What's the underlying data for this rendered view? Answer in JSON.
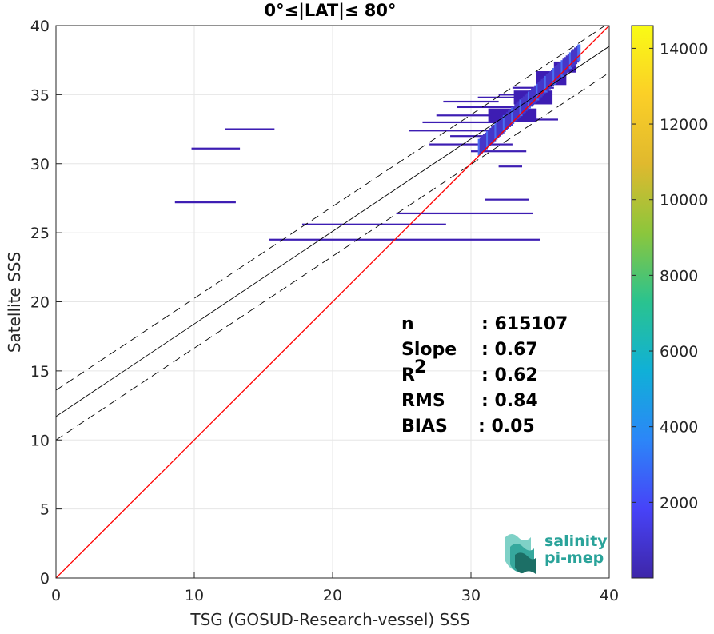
{
  "chart_data": {
    "type": "scatter",
    "title": "0°≤|LAT|≤ 80°",
    "xlabel": "TSG (GOSUD-Research-vessel) SSS",
    "ylabel": "Satellite SSS",
    "xlim": [
      0,
      40
    ],
    "ylim": [
      0,
      40
    ],
    "xticks": [
      "0",
      "10",
      "20",
      "30",
      "40"
    ],
    "yticks": [
      "0",
      "5",
      "10",
      "15",
      "20",
      "25",
      "30",
      "35",
      "40"
    ],
    "grid": true,
    "stats": [
      {
        "label": "n",
        "value": ": 615107"
      },
      {
        "label": "Slope",
        "value": ": 0.67"
      },
      {
        "label": "R",
        "sup": "2",
        "value": ": 0.62"
      },
      {
        "label": "RMS",
        "value": ": 0.84"
      },
      {
        "label": "BIAS",
        "value": ": 0.05"
      }
    ],
    "identity_line": {
      "color": "#ff0000",
      "x": [
        0,
        40
      ],
      "y": [
        0,
        40
      ]
    },
    "fit_line": {
      "color": "#000000",
      "x": [
        0,
        40
      ],
      "y": [
        11.7,
        38.5
      ]
    },
    "fit_band_upper": {
      "color": "#000000",
      "dash": true,
      "x": [
        0,
        40
      ],
      "y": [
        13.6,
        40.2
      ]
    },
    "fit_band_lower": {
      "color": "#000000",
      "dash": true,
      "x": [
        0,
        40
      ],
      "y": [
        10.0,
        36.6
      ]
    },
    "density_segments": [
      {
        "x0": 12.2,
        "x1": 15.8,
        "y": 32.5
      },
      {
        "x0": 9.8,
        "x1": 13.3,
        "y": 31.1
      },
      {
        "x0": 8.6,
        "x1": 13.0,
        "y": 27.2
      },
      {
        "x0": 15.4,
        "x1": 35.0,
        "y": 24.5
      },
      {
        "x0": 17.8,
        "x1": 28.2,
        "y": 25.6
      },
      {
        "x0": 24.6,
        "x1": 34.5,
        "y": 26.4
      },
      {
        "x0": 31.0,
        "x1": 34.2,
        "y": 27.4
      },
      {
        "x0": 32.0,
        "x1": 33.7,
        "y": 29.8
      },
      {
        "x0": 28.5,
        "x1": 31.5,
        "y": 32.0
      },
      {
        "x0": 27.0,
        "x1": 33.0,
        "y": 31.4
      },
      {
        "x0": 25.5,
        "x1": 32.0,
        "y": 32.4
      },
      {
        "x0": 26.5,
        "x1": 31.8,
        "y": 33.0
      },
      {
        "x0": 27.5,
        "x1": 33.0,
        "y": 33.5
      },
      {
        "x0": 29.0,
        "x1": 33.5,
        "y": 34.1
      },
      {
        "x0": 28.0,
        "x1": 32.0,
        "y": 34.5
      },
      {
        "x0": 30.5,
        "x1": 34.5,
        "y": 34.8
      },
      {
        "x0": 32.0,
        "x1": 35.0,
        "y": 35.0
      },
      {
        "x0": 33.0,
        "x1": 36.0,
        "y": 35.5
      },
      {
        "x0": 30.0,
        "x1": 34.0,
        "y": 30.9
      },
      {
        "x0": 32.5,
        "x1": 36.3,
        "y": 33.2
      }
    ],
    "density_color": "#3d1db3",
    "density_core": [
      {
        "x": 33.0,
        "y": 33.5,
        "w": 3.5,
        "h": 1.0
      },
      {
        "x": 34.5,
        "y": 34.8,
        "w": 2.8,
        "h": 1.0
      },
      {
        "x": 35.8,
        "y": 36.2,
        "w": 2.2,
        "h": 1.0
      },
      {
        "x": 36.8,
        "y": 37.0,
        "w": 1.6,
        "h": 0.8
      }
    ],
    "colorbar": {
      "min": 0,
      "max": 14600,
      "ticks": [
        "2000",
        "4000",
        "6000",
        "8000",
        "10000",
        "12000",
        "14000"
      ],
      "tick_values": [
        2000,
        4000,
        6000,
        8000,
        10000,
        12000,
        14000
      ],
      "colormap": [
        "#3e26a8",
        "#4743f8",
        "#2c86f8",
        "#10b0d7",
        "#2ac38f",
        "#8cc63c",
        "#e0b92e",
        "#fbcf27",
        "#f9fb15"
      ]
    }
  },
  "logo": {
    "line1": "salinity",
    "line2": "pi-mep"
  }
}
